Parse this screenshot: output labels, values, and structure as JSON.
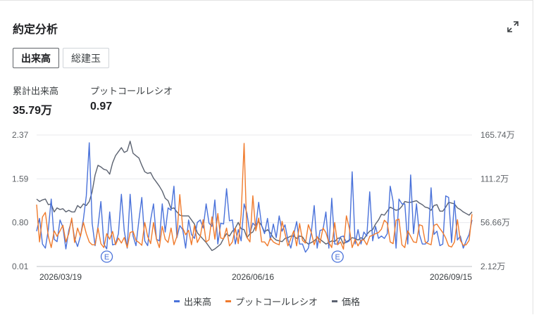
{
  "header": {
    "title": "約定分析"
  },
  "tabs": [
    {
      "label": "出来高",
      "active": true
    },
    {
      "label": "総建玉",
      "active": false
    }
  ],
  "stats": {
    "volume_label": "累計出来高",
    "volume_value": "35.79万",
    "pcr_label": "プットコールレシオ",
    "pcr_value": "0.97"
  },
  "icons": {
    "expand": "expand-icon",
    "earnings": "earnings-marker-icon"
  },
  "chart_data": {
    "type": "line",
    "left_axis_ticks": [
      "2.37",
      "1.59",
      "0.80",
      "0.01"
    ],
    "right_axis_ticks": [
      "165.74万",
      "111.2万",
      "56.66万",
      "2.12万"
    ],
    "x_tick_labels": [
      "2026/03/19",
      "2026/06/16",
      "2026/09/15"
    ],
    "left_ylim": [
      0.01,
      2.37
    ],
    "right_ylim": [
      2.12,
      165.74
    ],
    "right_unit": "万",
    "earnings_markers": [
      {
        "label": "E",
        "index": 24
      },
      {
        "label": "E",
        "index": 103
      }
    ],
    "series": [
      {
        "name": "出来高",
        "axis": "right",
        "color": "#4a72da",
        "values": [
          46,
          62,
          30,
          25,
          48,
          86,
          36,
          33,
          60,
          51,
          24,
          47,
          60,
          37,
          27,
          40,
          61,
          90,
          156,
          56,
          28,
          52,
          83,
          30,
          24,
          70,
          29,
          30,
          43,
          92,
          46,
          25,
          92,
          40,
          28,
          60,
          88,
          34,
          28,
          60,
          80,
          36,
          34,
          80,
          45,
          75,
          72,
          102,
          38,
          53,
          48,
          25,
          60,
          42,
          37,
          57,
          60,
          50,
          80,
          56,
          52,
          85,
          30,
          56,
          55,
          99,
          59,
          60,
          30,
          48,
          34,
          80,
          68,
          43,
          56,
          52,
          82,
          53,
          43,
          62,
          35,
          55,
          38,
          65,
          46,
          54,
          35,
          25,
          42,
          58,
          30,
          30,
          20,
          25,
          45,
          78,
          25,
          47,
          48,
          70,
          25,
          87,
          30,
          30,
          39,
          40,
          32,
          34,
          120,
          30,
          48,
          30,
          45,
          40,
          95,
          34,
          52,
          37,
          40,
          37,
          43,
          102,
          83,
          25,
          86,
          80,
          80,
          30,
          116,
          43,
          80,
          42,
          30,
          30,
          34,
          100,
          42,
          46,
          28,
          30,
          90,
          88,
          32,
          84,
          35,
          40,
          25,
          34,
          42,
          60
        ]
      },
      {
        "name": "プットコールレシオ",
        "axis": "left",
        "color": "#f07b2d",
        "values": [
          1.12,
          0.45,
          0.9,
          0.98,
          0.55,
          0.35,
          0.65,
          0.55,
          0.65,
          0.75,
          0.45,
          0.6,
          0.88,
          0.44,
          0.7,
          0.55,
          0.8,
          0.6,
          0.45,
          0.4,
          0.4,
          0.7,
          0.42,
          0.35,
          0.6,
          0.5,
          0.64,
          0.4,
          0.52,
          0.43,
          0.53,
          0.35,
          0.62,
          0.64,
          0.48,
          0.44,
          0.39,
          0.8,
          0.55,
          0.42,
          0.8,
          0.5,
          0.35,
          0.73,
          0.5,
          0.44,
          0.7,
          0.4,
          0.55,
          1.3,
          0.7,
          0.58,
          0.66,
          0.4,
          0.75,
          0.44,
          0.55,
          0.85,
          0.45,
          0.49,
          0.9,
          0.5,
          0.96,
          0.52,
          0.51,
          0.7,
          0.38,
          0.45,
          0.7,
          0.42,
          0.94,
          2.22,
          0.53,
          0.45,
          1.28,
          0.65,
          0.88,
          0.45,
          0.45,
          0.38,
          0.52,
          0.45,
          0.42,
          0.4,
          0.82,
          0.6,
          0.38,
          0.51,
          0.65,
          0.38,
          0.78,
          0.48,
          0.43,
          0.76,
          0.62,
          0.4,
          0.55,
          0.43,
          0.7,
          0.62,
          0.44,
          0.35,
          0.8,
          0.4,
          0.45,
          0.32,
          0.92,
          0.7,
          0.35,
          0.5,
          0.38,
          0.48,
          0.49,
          0.4,
          0.55,
          0.57,
          0.6,
          0.62,
          0.68,
          0.84,
          0.79,
          0.45,
          0.42,
          0.84,
          0.86,
          0.4,
          0.35,
          0.65,
          0.55,
          0.45,
          0.44,
          0.76,
          0.74,
          0.45,
          0.42,
          0.4,
          0.75,
          0.77,
          0.69,
          0.62,
          0.52,
          0.38,
          0.36,
          0.45,
          0.85,
          0.48,
          0.39,
          0.4,
          0.48,
          0.95
        ]
      },
      {
        "name": "価格",
        "axis": "right",
        "color": "#5b6270",
        "values": [
          86,
          83,
          85,
          86,
          79,
          80,
          70,
          75,
          73,
          74,
          70,
          72,
          70,
          70,
          78,
          75,
          80,
          78,
          83,
          95,
          116,
          128,
          126,
          123,
          122,
          117,
          131,
          140,
          145,
          150,
          144,
          146,
          158,
          143,
          140,
          137,
          128,
          120,
          118,
          119,
          112,
          107,
          102,
          96,
          87,
          84,
          74,
          75,
          70,
          66,
          65,
          65,
          65,
          60,
          55,
          44,
          40,
          36,
          32,
          27,
          22,
          24,
          27,
          30,
          37,
          43,
          40,
          46,
          50,
          57,
          49,
          48,
          38,
          43,
          45,
          53,
          58,
          53,
          45,
          48,
          44,
          38,
          35,
          34,
          33,
          37,
          38,
          40,
          40,
          37,
          40,
          39,
          33,
          30,
          32,
          34,
          38,
          36,
          33,
          30,
          32,
          34,
          33,
          37,
          38,
          30,
          33,
          35,
          38,
          37,
          35,
          38,
          36,
          42,
          46,
          48,
          55,
          60,
          67,
          66,
          71,
          76,
          74,
          72,
          73,
          77,
          83,
          82,
          82,
          83,
          84,
          81,
          79,
          76,
          75,
          72,
          78,
          79,
          71,
          71,
          76,
          82,
          81,
          80,
          75,
          73,
          70,
          68,
          66,
          70
        ]
      }
    ]
  },
  "legend": [
    {
      "label": "出来高",
      "color": "#4a72da"
    },
    {
      "label": "プットコールレシオ",
      "color": "#f07b2d"
    },
    {
      "label": "価格",
      "color": "#5b6270"
    }
  ]
}
